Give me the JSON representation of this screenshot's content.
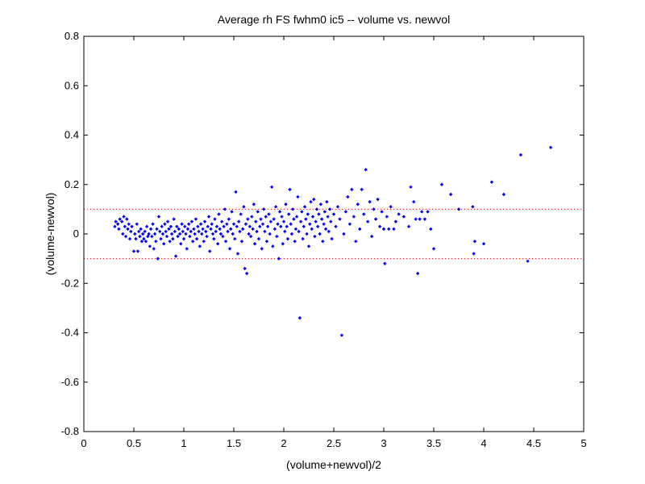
{
  "chart_data": {
    "type": "scatter",
    "title": "Average rh FS fwhm0 ic5 -- volume vs. newvol",
    "xlabel": "(volume+newvol)/2",
    "ylabel": "(volume-newvol)",
    "xlim": [
      0,
      5
    ],
    "ylim": [
      -0.8,
      0.8
    ],
    "xticks": [
      "0",
      "0.5",
      "1",
      "1.5",
      "2",
      "2.5",
      "3",
      "3.5",
      "4",
      "4.5",
      "5"
    ],
    "yticks": [
      "-0.8",
      "-0.6",
      "-0.4",
      "-0.2",
      "0",
      "0.2",
      "0.4",
      "0.6",
      "0.8"
    ],
    "xtick_values": [
      0,
      0.5,
      1,
      1.5,
      2,
      2.5,
      3,
      3.5,
      4,
      4.5,
      5
    ],
    "ytick_values": [
      -0.8,
      -0.6,
      -0.4,
      -0.2,
      0,
      0.2,
      0.4,
      0.6,
      0.8
    ],
    "grid": false,
    "marker_color": "#0000ff",
    "reference_line_color": "#ff0000",
    "reference_lines": [
      0.1,
      -0.1
    ],
    "series": [
      {
        "points": [
          [
            0.31,
            0.03
          ],
          [
            0.32,
            0.05
          ],
          [
            0.34,
            0.04
          ],
          [
            0.35,
            0.02
          ],
          [
            0.36,
            0.06
          ],
          [
            0.38,
            0.05
          ],
          [
            0.39,
            0.0
          ],
          [
            0.4,
            0.07
          ],
          [
            0.41,
            0.03
          ],
          [
            0.42,
            -0.01
          ],
          [
            0.43,
            0.06
          ],
          [
            0.44,
            0.02
          ],
          [
            0.45,
            0.04
          ],
          [
            0.46,
            -0.02
          ],
          [
            0.47,
            0.01
          ],
          [
            0.48,
            0.03
          ],
          [
            0.5,
            -0.07
          ],
          [
            0.51,
            0.0
          ],
          [
            0.52,
            -0.02
          ],
          [
            0.53,
            0.04
          ],
          [
            0.54,
            -0.07
          ],
          [
            0.55,
            0.01
          ],
          [
            0.56,
            -0.01
          ],
          [
            0.57,
            0.02
          ],
          [
            0.58,
            -0.03
          ],
          [
            0.59,
            0.0
          ],
          [
            0.6,
            -0.02
          ],
          [
            0.61,
            0.01
          ],
          [
            0.62,
            -0.03
          ],
          [
            0.63,
            0.03
          ],
          [
            0.64,
            -0.01
          ],
          [
            0.65,
            0.0
          ],
          [
            0.66,
            -0.05
          ],
          [
            0.67,
            0.02
          ],
          [
            0.68,
            -0.01
          ],
          [
            0.69,
            0.04
          ],
          [
            0.7,
            -0.06
          ],
          [
            0.71,
            0.0
          ],
          [
            0.72,
            -0.03
          ],
          [
            0.73,
            0.02
          ],
          [
            0.74,
            -0.1
          ],
          [
            0.75,
            0.07
          ],
          [
            0.76,
            0.01
          ],
          [
            0.77,
            -0.02
          ],
          [
            0.78,
            0.03
          ],
          [
            0.79,
            0.0
          ],
          [
            0.8,
            -0.04
          ],
          [
            0.81,
            0.04
          ],
          [
            0.82,
            0.01
          ],
          [
            0.83,
            -0.01
          ],
          [
            0.84,
            0.05
          ],
          [
            0.85,
            0.02
          ],
          [
            0.86,
            -0.03
          ],
          [
            0.87,
            0.03
          ],
          [
            0.88,
            0.0
          ],
          [
            0.89,
            -0.02
          ],
          [
            0.9,
            0.06
          ],
          [
            0.91,
            0.01
          ],
          [
            0.92,
            -0.09
          ],
          [
            0.93,
            0.03
          ],
          [
            0.94,
            -0.01
          ],
          [
            0.95,
            0.02
          ],
          [
            0.96,
            0.0
          ],
          [
            0.97,
            -0.04
          ],
          [
            0.98,
            0.04
          ],
          [
            0.99,
            0.01
          ],
          [
            1.0,
            -0.02
          ],
          [
            1.01,
            0.03
          ],
          [
            1.02,
            0.0
          ],
          [
            1.03,
            -0.06
          ],
          [
            1.04,
            0.02
          ],
          [
            1.05,
            0.04
          ],
          [
            1.06,
            -0.01
          ],
          [
            1.07,
            0.01
          ],
          [
            1.08,
            0.05
          ],
          [
            1.09,
            -0.03
          ],
          [
            1.1,
            0.02
          ],
          [
            1.11,
            0.0
          ],
          [
            1.12,
            0.06
          ],
          [
            1.13,
            -0.02
          ],
          [
            1.14,
            0.03
          ],
          [
            1.15,
            0.01
          ],
          [
            1.16,
            -0.05
          ],
          [
            1.17,
            0.04
          ],
          [
            1.18,
            0.0
          ],
          [
            1.19,
            0.02
          ],
          [
            1.2,
            -0.03
          ],
          [
            1.21,
            0.05
          ],
          [
            1.22,
            0.01
          ],
          [
            1.23,
            -0.01
          ],
          [
            1.24,
            0.03
          ],
          [
            1.25,
            0.07
          ],
          [
            1.26,
            -0.07
          ],
          [
            1.27,
            0.02
          ],
          [
            1.28,
            0.04
          ],
          [
            1.29,
            0.0
          ],
          [
            1.3,
            -0.02
          ],
          [
            1.31,
            0.06
          ],
          [
            1.32,
            0.01
          ],
          [
            1.33,
            0.03
          ],
          [
            1.34,
            -0.04
          ],
          [
            1.35,
            0.08
          ],
          [
            1.36,
            0.02
          ],
          [
            1.37,
            0.0
          ],
          [
            1.38,
            0.05
          ],
          [
            1.39,
            -0.01
          ],
          [
            1.4,
            0.03
          ],
          [
            1.41,
            0.1
          ],
          [
            1.42,
            -0.03
          ],
          [
            1.43,
            0.04
          ],
          [
            1.44,
            0.01
          ],
          [
            1.45,
            0.06
          ],
          [
            1.46,
            -0.06
          ],
          [
            1.47,
            0.02
          ],
          [
            1.48,
            0.09
          ],
          [
            1.49,
            0.0
          ],
          [
            1.5,
            0.04
          ],
          [
            1.51,
            -0.02
          ],
          [
            1.52,
            0.17
          ],
          [
            1.53,
            0.03
          ],
          [
            1.54,
            -0.08
          ],
          [
            1.55,
            0.05
          ],
          [
            1.56,
            0.01
          ],
          [
            1.57,
            0.08
          ],
          [
            1.58,
            -0.03
          ],
          [
            1.59,
            0.02
          ],
          [
            1.6,
            0.11
          ],
          [
            1.61,
            -0.14
          ],
          [
            1.62,
            0.04
          ],
          [
            1.63,
            -0.16
          ],
          [
            1.64,
            0.06
          ],
          [
            1.65,
            0.0
          ],
          [
            1.66,
            0.03
          ],
          [
            1.67,
            -0.01
          ],
          [
            1.68,
            0.07
          ],
          [
            1.69,
            0.02
          ],
          [
            1.7,
            0.12
          ],
          [
            1.71,
            -0.04
          ],
          [
            1.72,
            0.05
          ],
          [
            1.73,
            0.01
          ],
          [
            1.74,
            0.09
          ],
          [
            1.75,
            -0.02
          ],
          [
            1.76,
            0.03
          ],
          [
            1.77,
            0.06
          ],
          [
            1.78,
            -0.06
          ],
          [
            1.79,
            0.04
          ],
          [
            1.8,
            0.1
          ],
          [
            1.81,
            0.01
          ],
          [
            1.82,
            0.07
          ],
          [
            1.83,
            -0.03
          ],
          [
            1.84,
            0.03
          ],
          [
            1.85,
            0.08
          ],
          [
            1.86,
            0.0
          ],
          [
            1.87,
            0.05
          ],
          [
            1.88,
            0.19
          ],
          [
            1.89,
            -0.05
          ],
          [
            1.9,
            0.06
          ],
          [
            1.91,
            0.02
          ],
          [
            1.92,
            0.11
          ],
          [
            1.93,
            -0.01
          ],
          [
            1.94,
            0.04
          ],
          [
            1.95,
            -0.1
          ],
          [
            1.96,
            0.09
          ],
          [
            1.97,
            0.03
          ],
          [
            1.98,
            0.07
          ],
          [
            1.99,
            -0.04
          ],
          [
            2.0,
            0.05
          ],
          [
            2.01,
            0.01
          ],
          [
            2.02,
            0.12
          ],
          [
            2.03,
            0.03
          ],
          [
            2.04,
            -0.02
          ],
          [
            2.05,
            0.08
          ],
          [
            2.06,
            0.18
          ],
          [
            2.07,
            0.04
          ],
          [
            2.08,
            0.0
          ],
          [
            2.09,
            0.1
          ],
          [
            2.1,
            0.06
          ],
          [
            2.11,
            -0.03
          ],
          [
            2.12,
            0.02
          ],
          [
            2.13,
            0.07
          ],
          [
            2.14,
            0.15
          ],
          [
            2.15,
            0.01
          ],
          [
            2.16,
            -0.34
          ],
          [
            2.17,
            0.05
          ],
          [
            2.18,
            0.09
          ],
          [
            2.19,
            -0.02
          ],
          [
            2.2,
            0.03
          ],
          [
            2.21,
            0.11
          ],
          [
            2.22,
            0.06
          ],
          [
            2.23,
            0.0
          ],
          [
            2.24,
            0.08
          ],
          [
            2.25,
            -0.05
          ],
          [
            2.26,
            0.04
          ],
          [
            2.27,
            0.13
          ],
          [
            2.28,
            0.02
          ],
          [
            2.29,
            0.07
          ],
          [
            2.3,
            0.14
          ],
          [
            2.31,
            -0.01
          ],
          [
            2.32,
            0.05
          ],
          [
            2.33,
            0.1
          ],
          [
            2.34,
            0.03
          ],
          [
            2.35,
            0.08
          ],
          [
            2.36,
            0.0
          ],
          [
            2.37,
            0.12
          ],
          [
            2.38,
            0.06
          ],
          [
            2.39,
            -0.03
          ],
          [
            2.4,
            0.04
          ],
          [
            2.41,
            0.09
          ],
          [
            2.42,
            0.02
          ],
          [
            2.43,
            0.13
          ],
          [
            2.44,
            0.07
          ],
          [
            2.45,
            0.01
          ],
          [
            2.46,
            0.1
          ],
          [
            2.47,
            0.05
          ],
          [
            2.48,
            -0.02
          ],
          [
            2.5,
            0.08
          ],
          [
            2.52,
            0.03
          ],
          [
            2.54,
            0.11
          ],
          [
            2.56,
            0.06
          ],
          [
            2.58,
            -0.41
          ],
          [
            2.6,
            0.0
          ],
          [
            2.62,
            0.09
          ],
          [
            2.64,
            0.15
          ],
          [
            2.66,
            0.04
          ],
          [
            2.68,
            0.18
          ],
          [
            2.7,
            0.07
          ],
          [
            2.72,
            -0.03
          ],
          [
            2.74,
            0.12
          ],
          [
            2.76,
            0.02
          ],
          [
            2.78,
            0.18
          ],
          [
            2.8,
            0.08
          ],
          [
            2.82,
            0.26
          ],
          [
            2.84,
            0.05
          ],
          [
            2.86,
            0.13
          ],
          [
            2.88,
            -0.01
          ],
          [
            2.9,
            0.1
          ],
          [
            2.92,
            0.06
          ],
          [
            2.94,
            0.14
          ],
          [
            2.96,
            0.03
          ],
          [
            2.98,
            0.09
          ],
          [
            3.0,
            0.02
          ],
          [
            3.01,
            -0.12
          ],
          [
            3.03,
            0.07
          ],
          [
            3.05,
            0.02
          ],
          [
            3.07,
            0.11
          ],
          [
            3.1,
            0.02
          ],
          [
            3.12,
            0.05
          ],
          [
            3.15,
            0.08
          ],
          [
            3.2,
            0.07
          ],
          [
            3.25,
            0.03
          ],
          [
            3.27,
            0.19
          ],
          [
            3.3,
            0.13
          ],
          [
            3.32,
            0.06
          ],
          [
            3.34,
            -0.16
          ],
          [
            3.36,
            0.06
          ],
          [
            3.38,
            0.09
          ],
          [
            3.41,
            0.06
          ],
          [
            3.44,
            0.09
          ],
          [
            3.47,
            0.02
          ],
          [
            3.5,
            -0.06
          ],
          [
            3.58,
            0.2
          ],
          [
            3.67,
            0.16
          ],
          [
            3.75,
            0.1
          ],
          [
            3.89,
            0.11
          ],
          [
            3.9,
            -0.08
          ],
          [
            3.91,
            -0.03
          ],
          [
            4.0,
            -0.04
          ],
          [
            4.08,
            0.21
          ],
          [
            4.2,
            0.16
          ],
          [
            4.37,
            0.32
          ],
          [
            4.44,
            -0.11
          ],
          [
            4.67,
            0.35
          ]
        ]
      }
    ]
  }
}
